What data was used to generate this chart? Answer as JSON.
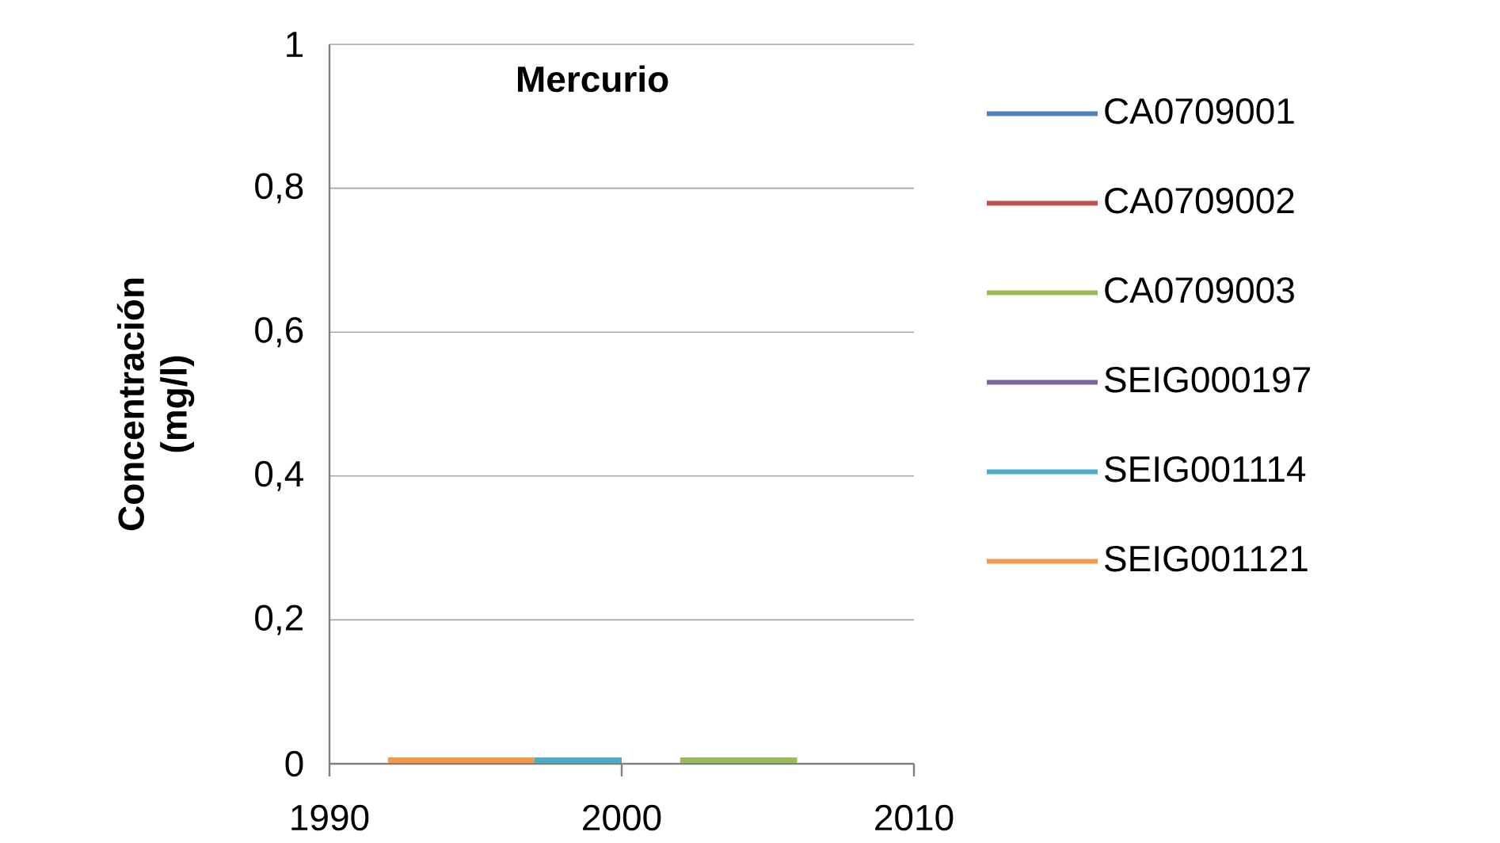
{
  "chart_data": {
    "type": "line",
    "title": "Mercurio",
    "ylabel": "Concentración (mg/l)",
    "xlim": [
      1990,
      2010
    ],
    "xticks": [
      1990,
      2000,
      2010
    ],
    "ylim": [
      0,
      1
    ],
    "yticks": [
      0,
      {
        "value": 0.2,
        "label": "0,2"
      },
      {
        "value": 0.4,
        "label": "0,4"
      },
      {
        "value": 0.6,
        "label": "0,6"
      },
      {
        "value": 0.8,
        "label": "0,8"
      },
      1
    ],
    "grid": "y",
    "legend": "right",
    "marker": "none",
    "line_style": "solid",
    "series": [
      {
        "name": "CA0709001",
        "color": "#4f81bd"
      },
      {
        "name": "CA0709002",
        "color": "#c0504d"
      },
      {
        "name": "CA0709003",
        "color": "#9bbb59",
        "x": [
          2002,
          2006
        ],
        "values": [
          0.005,
          0.005
        ]
      },
      {
        "name": "SEIG000197",
        "color": "#8064a2"
      },
      {
        "name": "SEIG001114",
        "color": "#4bacc6",
        "x": [
          1997,
          2000
        ],
        "values": [
          0.005,
          0.005
        ]
      },
      {
        "name": "SEIG001121",
        "color": "#f79646",
        "x": [
          1992,
          1997
        ],
        "values": [
          0.005,
          0.005
        ]
      }
    ]
  }
}
